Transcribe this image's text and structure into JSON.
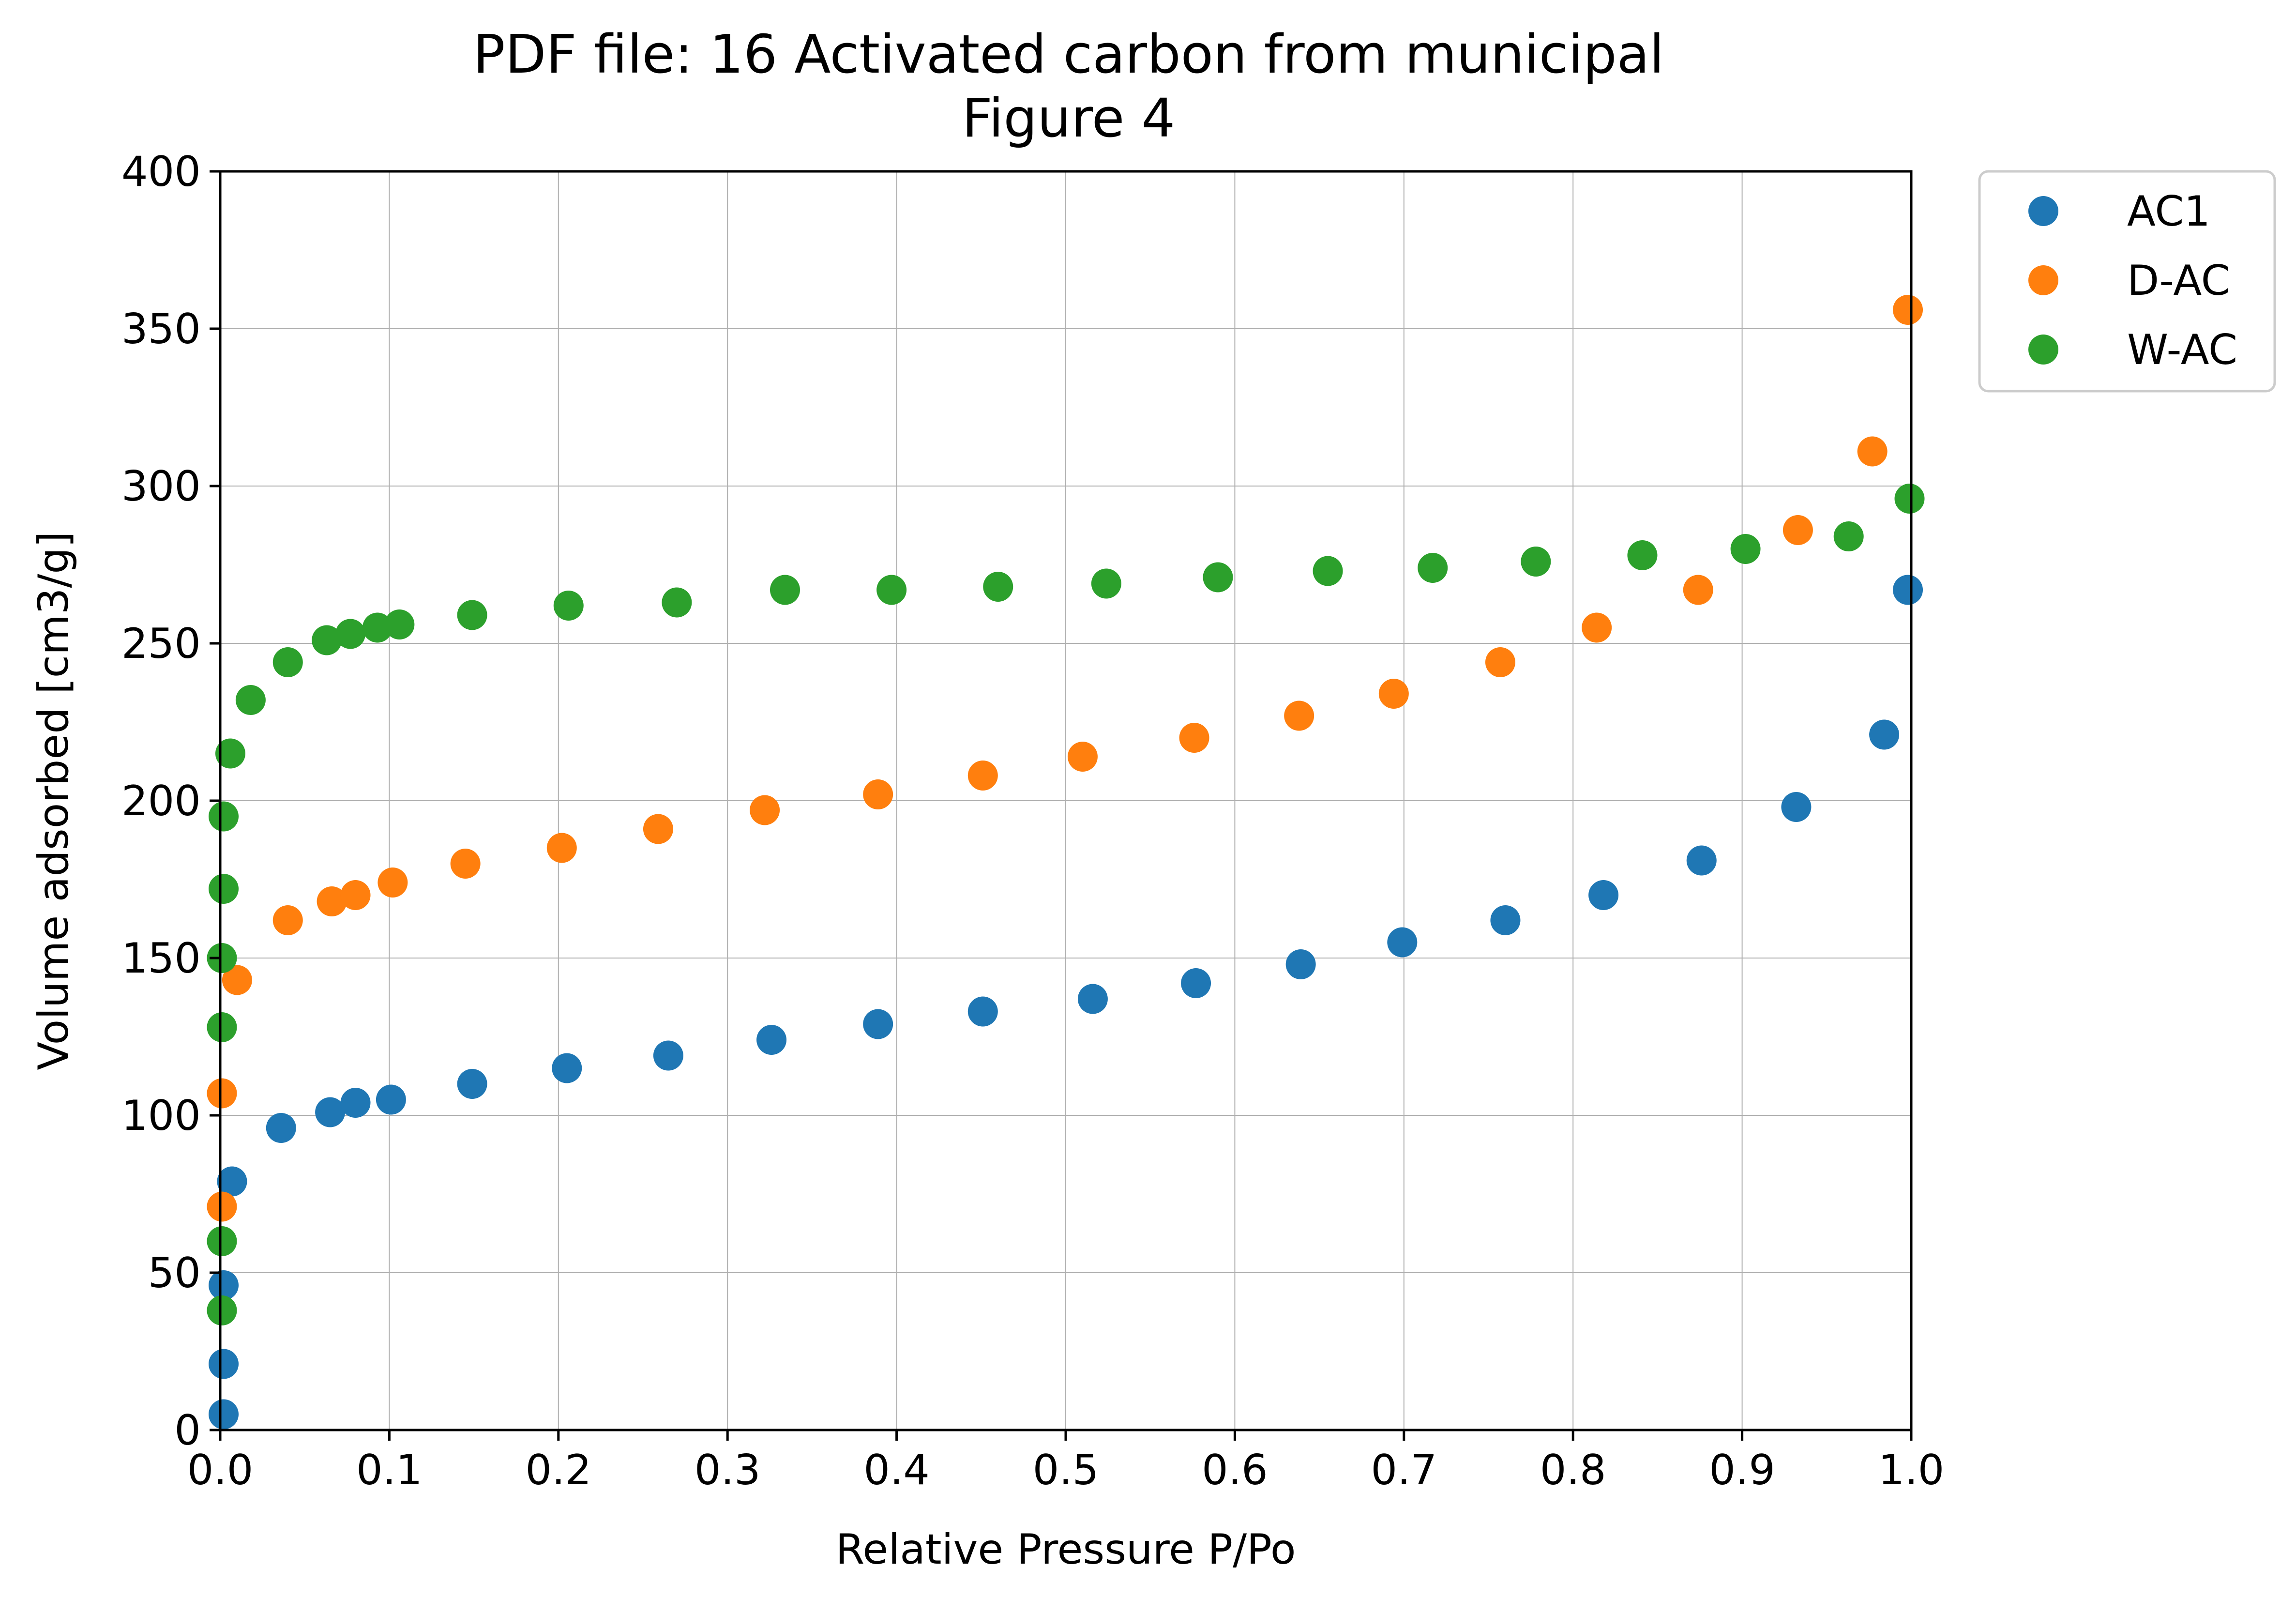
{
  "chart_data": {
    "type": "scatter",
    "title": "PDF file: 16 Activated carbon from municipal",
    "subtitle": "Figure 4",
    "xlabel": "Relative Pressure P/Po",
    "ylabel": "Volume adsorbed [cm3/g]",
    "xlim": [
      0.0,
      1.0
    ],
    "ylim": [
      0,
      400
    ],
    "xticks": [
      "0.0",
      "0.1",
      "0.2",
      "0.3",
      "0.4",
      "0.5",
      "0.6",
      "0.7",
      "0.8",
      "0.9",
      "1.0"
    ],
    "yticks": [
      "0",
      "50",
      "100",
      "150",
      "200",
      "250",
      "300",
      "350",
      "400"
    ],
    "grid": true,
    "legend_position": "outside-top-right",
    "series": [
      {
        "name": "AC1",
        "color": "#1f77b4",
        "points": [
          [
            0.002,
            5
          ],
          [
            0.002,
            21
          ],
          [
            0.002,
            46
          ],
          [
            0.007,
            79
          ],
          [
            0.036,
            96
          ],
          [
            0.065,
            101
          ],
          [
            0.08,
            104
          ],
          [
            0.101,
            105
          ],
          [
            0.149,
            110
          ],
          [
            0.205,
            115
          ],
          [
            0.265,
            119
          ],
          [
            0.326,
            124
          ],
          [
            0.389,
            129
          ],
          [
            0.451,
            133
          ],
          [
            0.516,
            137
          ],
          [
            0.577,
            142
          ],
          [
            0.639,
            148
          ],
          [
            0.699,
            155
          ],
          [
            0.76,
            162
          ],
          [
            0.818,
            170
          ],
          [
            0.876,
            181
          ],
          [
            0.932,
            198
          ],
          [
            0.984,
            221
          ],
          [
            0.998,
            267
          ]
        ]
      },
      {
        "name": "D-AC",
        "color": "#ff7f0e",
        "points": [
          [
            0.001,
            71
          ],
          [
            0.001,
            107
          ],
          [
            0.01,
            143
          ],
          [
            0.04,
            162
          ],
          [
            0.066,
            168
          ],
          [
            0.08,
            170
          ],
          [
            0.102,
            174
          ],
          [
            0.145,
            180
          ],
          [
            0.202,
            185
          ],
          [
            0.259,
            191
          ],
          [
            0.322,
            197
          ],
          [
            0.389,
            202
          ],
          [
            0.451,
            208
          ],
          [
            0.51,
            214
          ],
          [
            0.576,
            220
          ],
          [
            0.638,
            227
          ],
          [
            0.694,
            234
          ],
          [
            0.757,
            244
          ],
          [
            0.814,
            255
          ],
          [
            0.874,
            267
          ],
          [
            0.933,
            286
          ],
          [
            0.977,
            311
          ],
          [
            0.998,
            356
          ]
        ]
      },
      {
        "name": "W-AC",
        "color": "#2ca02c",
        "points": [
          [
            0.001,
            38
          ],
          [
            0.001,
            60
          ],
          [
            0.001,
            128
          ],
          [
            0.001,
            150
          ],
          [
            0.002,
            172
          ],
          [
            0.002,
            195
          ],
          [
            0.006,
            215
          ],
          [
            0.018,
            232
          ],
          [
            0.04,
            244
          ],
          [
            0.063,
            251
          ],
          [
            0.077,
            253
          ],
          [
            0.093,
            255
          ],
          [
            0.106,
            256
          ],
          [
            0.149,
            259
          ],
          [
            0.206,
            262
          ],
          [
            0.27,
            263
          ],
          [
            0.334,
            267
          ],
          [
            0.397,
            267
          ],
          [
            0.46,
            268
          ],
          [
            0.524,
            269
          ],
          [
            0.59,
            271
          ],
          [
            0.655,
            273
          ],
          [
            0.717,
            274
          ],
          [
            0.778,
            276
          ],
          [
            0.841,
            278
          ],
          [
            0.902,
            280
          ],
          [
            0.963,
            284
          ],
          [
            0.999,
            296
          ]
        ]
      }
    ]
  }
}
